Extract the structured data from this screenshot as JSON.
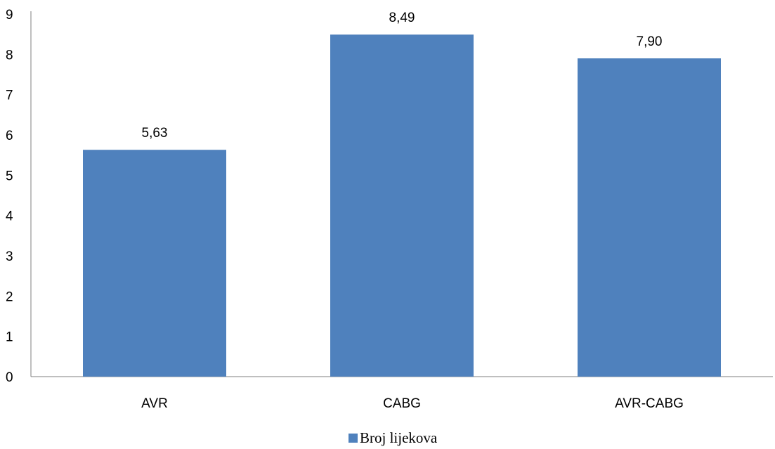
{
  "chart_data": {
    "type": "bar",
    "categories": [
      "AVR",
      "CABG",
      "AVR-CABG"
    ],
    "series": [
      {
        "name": "Broj lijekova",
        "values": [
          5.63,
          8.49,
          7.9
        ],
        "labels": [
          "5,63",
          "8,49",
          "7,90"
        ],
        "color": "#4f81bd"
      }
    ],
    "ylim": [
      0,
      9
    ],
    "yticks": [
      "0",
      "1",
      "2",
      "3",
      "4",
      "5",
      "6",
      "7",
      "8",
      "9"
    ],
    "grid": false,
    "legend": "bottom"
  }
}
